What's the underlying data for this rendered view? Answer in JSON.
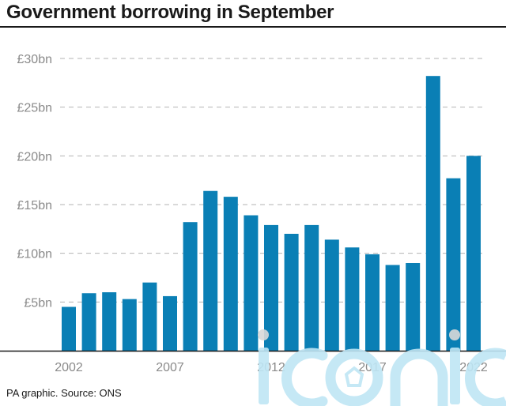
{
  "title": "Government borrowing in September",
  "source": "PA graphic. Source: ONS",
  "watermark": "iconic",
  "colors": {
    "bar": "#0a7fb5",
    "grid": "#b3b3b3",
    "text": "#8a8a8a",
    "watermark": "#bfe6f5"
  },
  "chart_data": {
    "type": "bar",
    "title": "Government borrowing in September",
    "xlabel": "",
    "ylabel": "",
    "categories": [
      "2002",
      "2003",
      "2004",
      "2005",
      "2006",
      "2007",
      "2008",
      "2009",
      "2010",
      "2011",
      "2012",
      "2013",
      "2014",
      "2015",
      "2016",
      "2017",
      "2018",
      "2019",
      "2020",
      "2021",
      "2022"
    ],
    "values": [
      4.5,
      5.9,
      6.0,
      5.3,
      7.0,
      5.6,
      13.2,
      16.4,
      15.8,
      13.9,
      12.9,
      12.0,
      12.9,
      11.4,
      10.6,
      9.9,
      8.8,
      9.0,
      28.2,
      17.7,
      20.0
    ],
    "ylim": [
      0,
      30
    ],
    "yticks": [
      5,
      10,
      15,
      20,
      25,
      30
    ],
    "ytick_labels": [
      "£5bn",
      "£10bn",
      "£15bn",
      "£20bn",
      "£25bn",
      "£30bn"
    ],
    "xtick_labels": [
      "2002",
      "2007",
      "2012",
      "2017",
      "2022"
    ],
    "grid": true,
    "legend": "none"
  }
}
